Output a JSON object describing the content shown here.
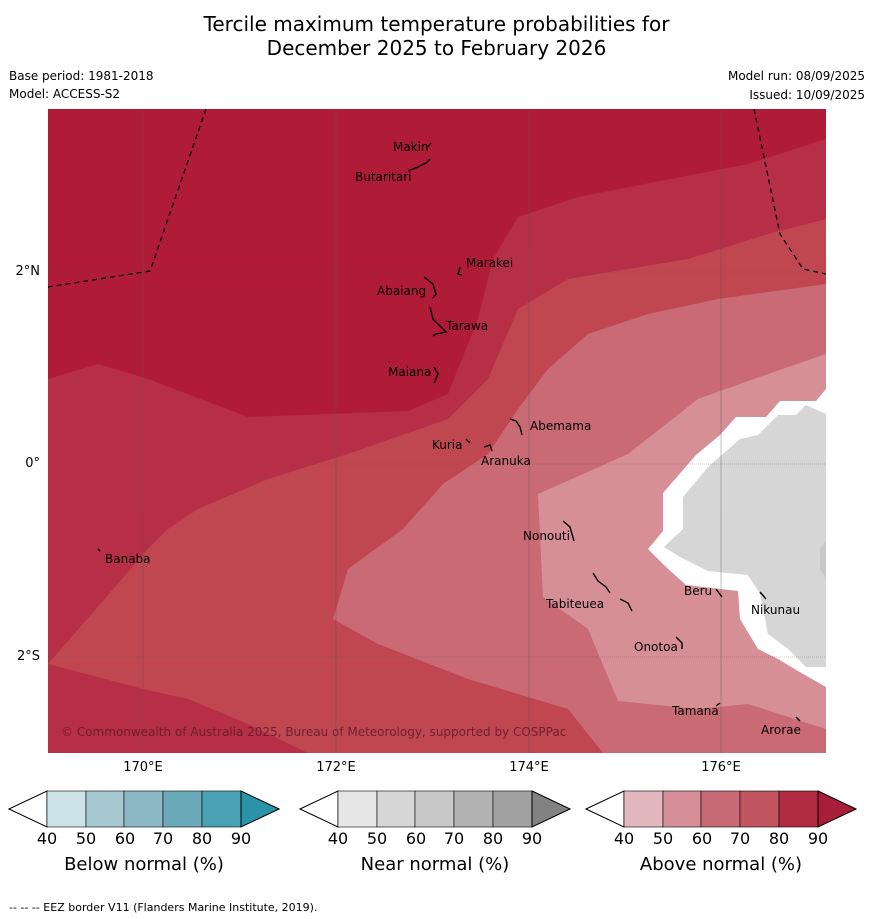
{
  "title_line1": "Tercile maximum temperature probabilities for",
  "title_line2": "December 2025 to February 2026",
  "base_period": "Base period: 1981-2018",
  "model": "Model: ACCESS-S2",
  "model_run": "Model run: 08/09/2025",
  "issued": "Issued: 10/09/2025",
  "copyright": "© Commonwealth of Australia 2025, Bureau of Meteorology, supported by COSPPac",
  "lat_labels": [
    "2°N",
    "0°",
    "2°S"
  ],
  "lon_labels": [
    "170°E",
    "172°E",
    "174°E",
    "176°E"
  ],
  "places": {
    "makin": "Makin",
    "butaritari": "Butaritari",
    "marakei": "Marakei",
    "abaiang": "Abaiang",
    "tarawa": "Tarawa",
    "maiana": "Maiana",
    "abemama": "Abemama",
    "kuria": "Kuria",
    "aranuka": "Aranuka",
    "banaba": "Banaba",
    "nonouti": "Nonouti",
    "beru": "Beru",
    "tabiteuea": "Tabiteuea",
    "nikunau": "Nikunau",
    "onotoa": "Onotoa",
    "tamana": "Tamana",
    "arorae": "Arorae"
  },
  "colorbars": {
    "below": {
      "title": "Below normal (%)",
      "ticks": [
        "40",
        "50",
        "60",
        "70",
        "80",
        "90"
      ],
      "colors": [
        "#ffffff",
        "#cce3ea",
        "#a6c9d2",
        "#8bb8c4",
        "#6aaab9",
        "#48a2b3",
        "#2b93a8"
      ]
    },
    "near": {
      "title": "Near normal (%)",
      "ticks": [
        "40",
        "50",
        "60",
        "70",
        "80",
        "90"
      ],
      "colors": [
        "#ffffff",
        "#e6e6e6",
        "#d6d6d6",
        "#c8c8c8",
        "#b3b3b3",
        "#a1a1a1",
        "#828282"
      ]
    },
    "above": {
      "title": "Above normal (%)",
      "ticks": [
        "40",
        "50",
        "60",
        "70",
        "80",
        "90"
      ],
      "colors": [
        "#ffffff",
        "#e2b7bd",
        "#d68e98",
        "#c86a75",
        "#c15660",
        "#b22c41",
        "#a81d3a"
      ]
    }
  },
  "map_colors": {
    "above_90": "#b01c38",
    "above_80": "#b72f46",
    "above_70": "#c04651",
    "above_60": "#c96a74",
    "above_50": "#d68f97",
    "near_50": "#d6d6d6"
  },
  "footnote": "--  --  -- EEZ border V11 (Flanders Marine Institute, 2019)."
}
